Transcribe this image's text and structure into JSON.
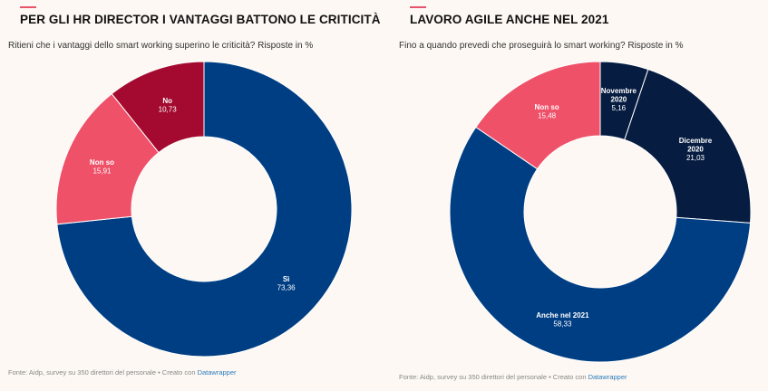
{
  "charts": {
    "left": {
      "title": "PER GLI HR DIRECTOR I VANTAGGI BATTONO LE CRITICITÀ",
      "subtitle": "Ritieni che i vantaggi dello smart working superino le criticità? Risposte in %",
      "footer_text": "Fonte: Aidp, survey su 350 direttori del personale • Creato con ",
      "footer_link": "Datawrapper"
    },
    "right": {
      "title": "LAVORO AGILE ANCHE NEL 2021",
      "subtitle": "Fino a quando prevedi che proseguirà lo smart working? Risposte in %",
      "footer_text": "Fonte: Aidp, survey su 350 direttori del personale • Creato con ",
      "footer_link": "Datawrapper"
    }
  },
  "chart_data": [
    {
      "type": "pie",
      "variant": "donut",
      "title": "PER GLI HR DIRECTOR I VANTAGGI BATTONO LE CRITICITÀ",
      "subtitle": "Ritieni che i vantaggi dello smart working superino le criticità? Risposte in %",
      "slices": [
        {
          "label": "Sì",
          "value": 73.36,
          "display": "73,36",
          "color": "#003e83"
        },
        {
          "label": "Non so",
          "value": 15.91,
          "display": "15,91",
          "color": "#ef5169"
        },
        {
          "label": "No",
          "value": 10.73,
          "display": "10,73",
          "color": "#a40a2f"
        }
      ]
    },
    {
      "type": "pie",
      "variant": "donut",
      "title": "LAVORO AGILE ANCHE NEL 2021",
      "subtitle": "Fino a quando prevedi che proseguirà lo smart working? Risposte in %",
      "slices": [
        {
          "label": "Novembre 2020",
          "value": 5.16,
          "display": "5,16",
          "color": "#061c40"
        },
        {
          "label": "Dicembre 2020",
          "value": 21.03,
          "display": "21,03",
          "color": "#061c40"
        },
        {
          "label": "Anche nel 2021",
          "value": 58.33,
          "display": "58,33",
          "color": "#003e83"
        },
        {
          "label": "Non so",
          "value": 15.48,
          "display": "15,48",
          "color": "#ef5169"
        }
      ]
    }
  ]
}
